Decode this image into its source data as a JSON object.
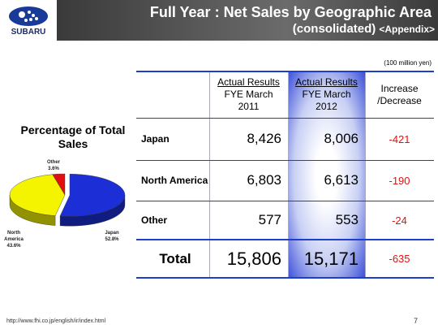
{
  "header": {
    "logo": "SUBARU",
    "title": "Full Year : Net Sales by Geographic Area",
    "subtitle": "(consolidated)",
    "subtitle_tag": "<Appendix>"
  },
  "unit": "(100 million yen)",
  "table": {
    "columns": [
      {
        "lines": [
          "Actual Results",
          "FYE March",
          "2011"
        ]
      },
      {
        "lines": [
          "Actual Results",
          "FYE March",
          "2012"
        ]
      },
      {
        "lines": [
          "Increase",
          "/Decrease"
        ]
      }
    ],
    "rows": [
      [
        "Japan",
        "8,426",
        "8,006",
        "-421"
      ],
      [
        "North America",
        "6,803",
        "6,613",
        "-190"
      ],
      [
        "Other",
        "577",
        "553",
        "-24"
      ],
      [
        "Total",
        "15,806",
        "15,171",
        "-635"
      ]
    ]
  },
  "chart_data": {
    "type": "pie",
    "title": "Percentage of Total Sales",
    "categories": [
      "Japan",
      "North America",
      "Other"
    ],
    "values": [
      52.8,
      43.6,
      3.6
    ],
    "value_labels": [
      "52.8%",
      "43.6%",
      "3.6%"
    ],
    "colors": [
      "#1c2fd6",
      "#f4f400",
      "#e01010"
    ]
  },
  "footer": {
    "url": "http://www.fhi.co.jp/english/ir/index.html",
    "page": "7"
  }
}
